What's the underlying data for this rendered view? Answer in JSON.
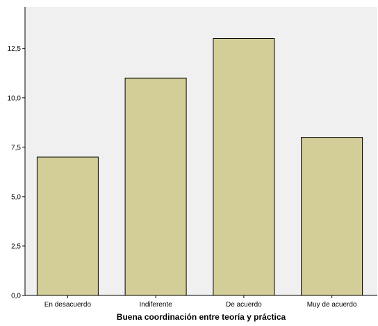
{
  "chart_data": {
    "type": "bar",
    "title": "",
    "xlabel": "Buena coordinación entre teoría y práctica",
    "ylabel": "",
    "categories": [
      "En desacuerdo",
      "Indiferente",
      "De acuerdo",
      "Muy de acuerdo"
    ],
    "values": [
      7,
      11,
      13,
      8
    ],
    "ylim": [
      0,
      14.6
    ],
    "yticks": [
      0,
      2.5,
      5,
      7.5,
      10,
      12.5
    ],
    "ytick_labels": [
      "0,0",
      "2,5",
      "5,0",
      "7,5",
      "10,0",
      "12,5"
    ],
    "grid": false,
    "legend": "none",
    "colors": {
      "plot_background": "#f0f0f0",
      "bar_fill": "#d3ce97",
      "bar_stroke": "#000000",
      "axis": "#000000"
    }
  }
}
